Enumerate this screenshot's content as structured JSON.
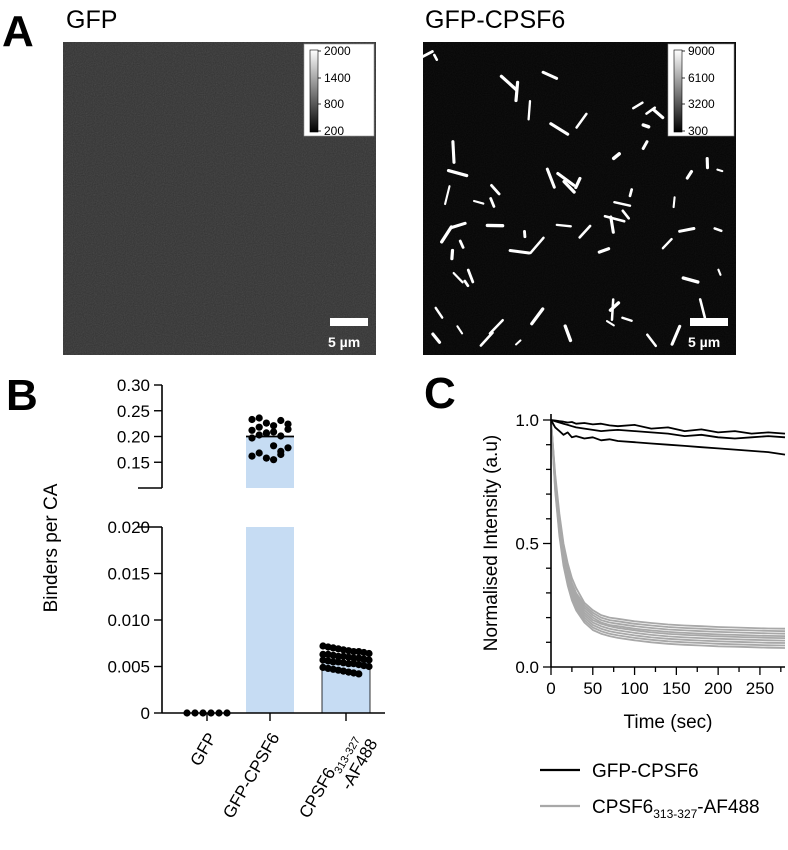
{
  "panel_a": {
    "letter": "A",
    "left": {
      "title": "GFP",
      "scalebar_label": "5 µm",
      "colorbar_ticks": [
        "2000",
        "1400",
        "800",
        "200"
      ]
    },
    "right": {
      "title": "GFP-CPSF6",
      "scalebar_label": "5 µm",
      "colorbar_ticks": [
        "9000",
        "6100",
        "3200",
        "300"
      ]
    }
  },
  "chart_data": [
    {
      "panel": "B",
      "type": "bar",
      "ylabel": "Binders per CA",
      "categories": [
        "GFP",
        "GFP-CPSF6",
        "CPSF6 313-327 -AF488"
      ],
      "category_labels": [
        [
          "GFP"
        ],
        [
          "GFP-CPSF6"
        ],
        [
          "CPSF6",
          "313-327",
          "-AF488"
        ]
      ],
      "values": [
        0,
        0.2,
        0.0055
      ],
      "axis_break": true,
      "ylim_lower": [
        0,
        0.02
      ],
      "ylim_upper": [
        0.1,
        0.3
      ],
      "yticks_lower": [
        "0",
        "0.005",
        "0.010",
        "0.015",
        "0.020"
      ],
      "yticks_upper": [
        "0.15",
        "0.20",
        "0.25",
        "0.30"
      ],
      "points": [
        [
          0,
          0,
          0,
          0,
          0,
          0
        ],
        [
          0.233,
          0.236,
          0.226,
          0.221,
          0.231,
          0.224,
          0.212,
          0.218,
          0.207,
          0.209,
          0.201,
          0.214,
          0.197,
          0.203,
          0.206,
          0.182,
          0.171,
          0.178,
          0.162,
          0.168,
          0.158,
          0.155,
          0.165
        ],
        [
          0.0072,
          0.0071,
          0.007,
          0.0069,
          0.0068,
          0.0067,
          0.0066,
          0.0066,
          0.0065,
          0.0064,
          0.0063,
          0.0063,
          0.0062,
          0.0061,
          0.0061,
          0.006,
          0.0059,
          0.0059,
          0.0058,
          0.0057,
          0.0057,
          0.0056,
          0.0055,
          0.0055,
          0.0054,
          0.0053,
          0.0053,
          0.0052,
          0.0051,
          0.005,
          0.0049,
          0.0048,
          0.0047,
          0.0046,
          0.0045,
          0.0044,
          0.0043,
          0.0042
        ]
      ],
      "bar_color": "#c6dcf3",
      "point_color": "#000000"
    },
    {
      "panel": "C",
      "type": "line",
      "xlabel": "Time (sec)",
      "ylabel": "Normalised Intensity (a.u)",
      "xlim": [
        0,
        280
      ],
      "ylim": [
        0,
        1.0
      ],
      "xticks": [
        "0",
        "50",
        "100",
        "150",
        "200",
        "250"
      ],
      "yticks": [
        "0.0",
        "0.5",
        "1.0"
      ],
      "x": [
        0,
        5,
        10,
        15,
        20,
        25,
        30,
        40,
        50,
        60,
        70,
        80,
        100,
        120,
        140,
        160,
        180,
        200,
        220,
        240,
        260,
        280
      ],
      "series": [
        {
          "name": "GFP-CPSF6",
          "color": "#000000",
          "lines": [
            [
              1.0,
              0.998,
              0.995,
              0.993,
              0.99,
              0.992,
              0.985,
              0.988,
              0.982,
              0.985,
              0.978,
              0.975,
              0.98,
              0.965,
              0.97,
              0.955,
              0.962,
              0.95,
              0.955,
              0.945,
              0.95,
              0.945
            ],
            [
              1.0,
              0.995,
              0.99,
              0.985,
              0.98,
              0.975,
              0.97,
              0.965,
              0.96,
              0.955,
              0.958,
              0.96,
              0.955,
              0.95,
              0.945,
              0.935,
              0.94,
              0.93,
              0.925,
              0.93,
              0.935,
              0.93
            ],
            [
              1.0,
              0.97,
              0.955,
              0.94,
              0.95,
              0.93,
              0.935,
              0.925,
              0.93,
              0.918,
              0.922,
              0.915,
              0.91,
              0.905,
              0.9,
              0.895,
              0.89,
              0.885,
              0.88,
              0.875,
              0.87,
              0.86
            ]
          ]
        },
        {
          "name": "CPSF6313-327-AF488",
          "label_parts": [
            "CPSF6",
            "313-327",
            "-AF488"
          ],
          "color": "#a8a8a8",
          "lines": [
            [
              1.0,
              0.78,
              0.62,
              0.5,
              0.42,
              0.36,
              0.32,
              0.26,
              0.23,
              0.21,
              0.2,
              0.195,
              0.185,
              0.178,
              0.172,
              0.168,
              0.165,
              0.162,
              0.16,
              0.158,
              0.156,
              0.155
            ],
            [
              1.0,
              0.77,
              0.6,
              0.48,
              0.4,
              0.34,
              0.3,
              0.25,
              0.22,
              0.2,
              0.19,
              0.185,
              0.175,
              0.168,
              0.162,
              0.158,
              0.155,
              0.152,
              0.15,
              0.148,
              0.146,
              0.145
            ],
            [
              1.0,
              0.76,
              0.59,
              0.47,
              0.39,
              0.33,
              0.29,
              0.24,
              0.21,
              0.19,
              0.18,
              0.175,
              0.165,
              0.158,
              0.152,
              0.148,
              0.145,
              0.142,
              0.14,
              0.138,
              0.136,
              0.135
            ],
            [
              1.0,
              0.75,
              0.58,
              0.46,
              0.38,
              0.32,
              0.28,
              0.23,
              0.2,
              0.18,
              0.17,
              0.165,
              0.155,
              0.148,
              0.142,
              0.138,
              0.135,
              0.132,
              0.13,
              0.128,
              0.126,
              0.125
            ],
            [
              1.0,
              0.75,
              0.57,
              0.45,
              0.37,
              0.31,
              0.27,
              0.22,
              0.19,
              0.175,
              0.165,
              0.158,
              0.148,
              0.14,
              0.134,
              0.13,
              0.127,
              0.124,
              0.122,
              0.12,
              0.118,
              0.117
            ],
            [
              1.0,
              0.74,
              0.56,
              0.44,
              0.36,
              0.3,
              0.26,
              0.21,
              0.18,
              0.165,
              0.155,
              0.148,
              0.138,
              0.13,
              0.124,
              0.12,
              0.117,
              0.114,
              0.112,
              0.11,
              0.108,
              0.107
            ],
            [
              1.0,
              0.73,
              0.55,
              0.43,
              0.35,
              0.29,
              0.25,
              0.2,
              0.17,
              0.155,
              0.145,
              0.138,
              0.128,
              0.12,
              0.114,
              0.11,
              0.107,
              0.104,
              0.102,
              0.1,
              0.098,
              0.097
            ],
            [
              1.0,
              0.72,
              0.54,
              0.42,
              0.34,
              0.28,
              0.24,
              0.19,
              0.16,
              0.145,
              0.135,
              0.128,
              0.118,
              0.11,
              0.104,
              0.1,
              0.097,
              0.094,
              0.092,
              0.09,
              0.088,
              0.087
            ],
            [
              1.0,
              0.71,
              0.53,
              0.41,
              0.33,
              0.27,
              0.23,
              0.18,
              0.15,
              0.135,
              0.125,
              0.118,
              0.108,
              0.1,
              0.094,
              0.09,
              0.087,
              0.084,
              0.082,
              0.08,
              0.078,
              0.077
            ]
          ]
        }
      ],
      "legend_placement": "bottom"
    }
  ]
}
